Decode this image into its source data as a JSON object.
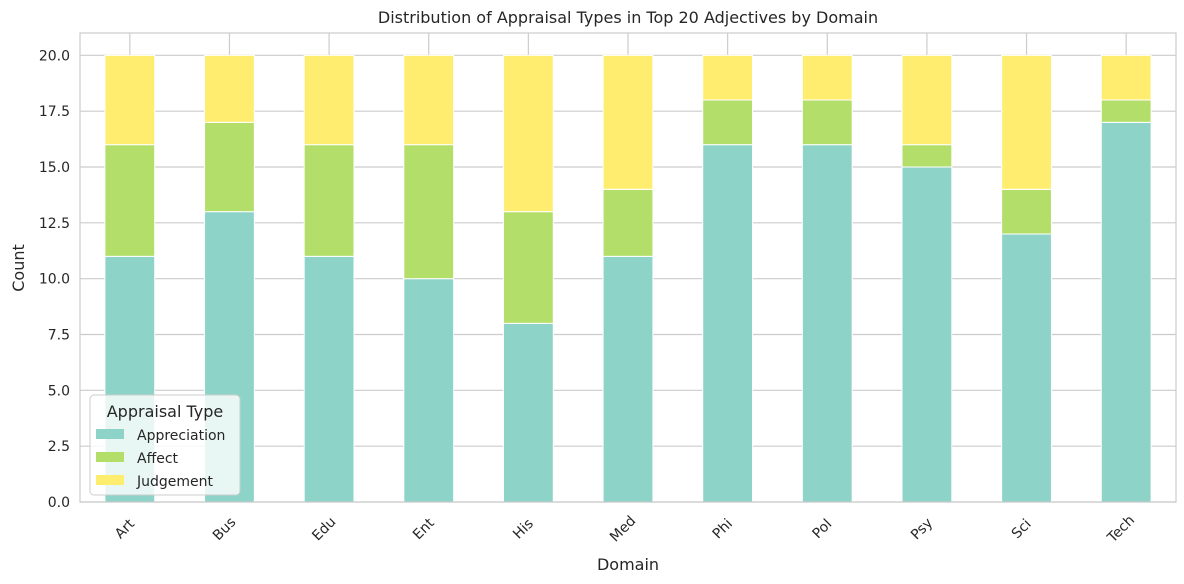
{
  "chart_data": {
    "type": "bar",
    "stacked": true,
    "title": "Distribution of Appraisal Types in Top 20 Adjectives by Domain",
    "xlabel": "Domain",
    "ylabel": "Count",
    "categories": [
      "Art",
      "Bus",
      "Edu",
      "Ent",
      "His",
      "Med",
      "Phi",
      "Pol",
      "Psy",
      "Sci",
      "Tech"
    ],
    "yticks": [
      "0.0",
      "2.5",
      "5.0",
      "7.5",
      "10.0",
      "12.5",
      "15.0",
      "17.5",
      "20.0"
    ],
    "ylim": [
      0,
      21
    ],
    "grid": true,
    "legend": {
      "title": "Appraisal Type",
      "position": "lower-left"
    },
    "series": [
      {
        "name": "Appreciation",
        "color": "#8dd3c7",
        "values": [
          11,
          13,
          11,
          10,
          8,
          11,
          16,
          16,
          15,
          12,
          17
        ]
      },
      {
        "name": "Affect",
        "color": "#b3de69",
        "values": [
          5,
          4,
          5,
          6,
          5,
          3,
          2,
          2,
          1,
          2,
          1
        ]
      },
      {
        "name": "Judgement",
        "color": "#ffed6f",
        "values": [
          4,
          3,
          4,
          4,
          7,
          6,
          2,
          2,
          4,
          6,
          2
        ]
      }
    ]
  }
}
